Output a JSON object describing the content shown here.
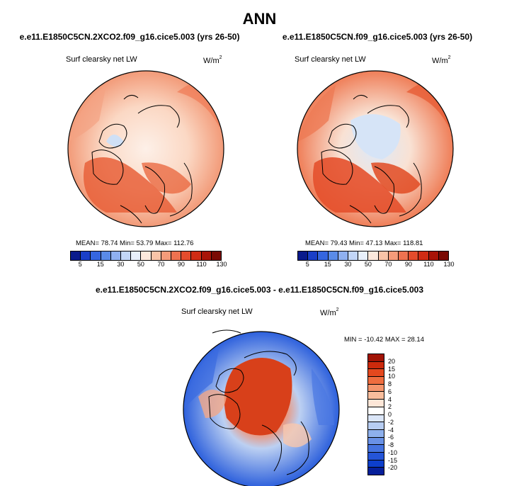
{
  "title": "ANN",
  "panels": [
    {
      "case": "e.e11.E1850C5CN.2XCO2.f09_g16.cice5.003 (yrs 26-50)",
      "field": "Surf clearsky net LW",
      "units": "W/m",
      "units_sup": "2",
      "stats": "MEAN=  78.74  Min=  53.79  Max=  112.76"
    },
    {
      "case": "e.e11.E1850C5CN.f09_g16.cice5.003 (yrs 26-50)",
      "field": "Surf clearsky net LW",
      "units": "W/m",
      "units_sup": "2",
      "stats": "MEAN=  79.43  Min=  47.13  Max=  118.81"
    }
  ],
  "diff": {
    "case": "e.e11.E1850C5CN.2XCO2.f09_g16.cice5.003 - e.e11.E1850C5CN.f09_g16.cice5.003",
    "field": "Surf clearsky net LW",
    "units": "W/m",
    "units_sup": "2",
    "stats": "MIN = -10.42 MAX =  28.14"
  },
  "colorbar_abs": {
    "colors": [
      "#0a1a8c",
      "#1a3fc8",
      "#3566e0",
      "#5a8be8",
      "#8fb0f0",
      "#c2d6f7",
      "#e8f0fb",
      "#fde9dc",
      "#f9c4a8",
      "#f49b7a",
      "#ee7250",
      "#e44c2c",
      "#d02c14",
      "#a81408",
      "#7a0a04"
    ],
    "ticks": [
      "5",
      "15",
      "30",
      "50",
      "70",
      "90",
      "110",
      "130"
    ]
  },
  "colorbar_diff": {
    "colors": [
      "#a11305",
      "#cc2a0c",
      "#e4481e",
      "#ef6d3f",
      "#f5956c",
      "#f9bd9c",
      "#fde6d7",
      "#ffffff",
      "#dbe6f8",
      "#b7cdf2",
      "#8eb0ec",
      "#6991e6",
      "#4573e0",
      "#2555d8",
      "#0d3fcb",
      "#061f9a"
    ],
    "ticks": [
      "20",
      "15",
      "10",
      "8",
      "6",
      "4",
      "2",
      "0",
      "-2",
      "-4",
      "-6",
      "-8",
      "-10",
      "-15",
      "-20"
    ]
  }
}
